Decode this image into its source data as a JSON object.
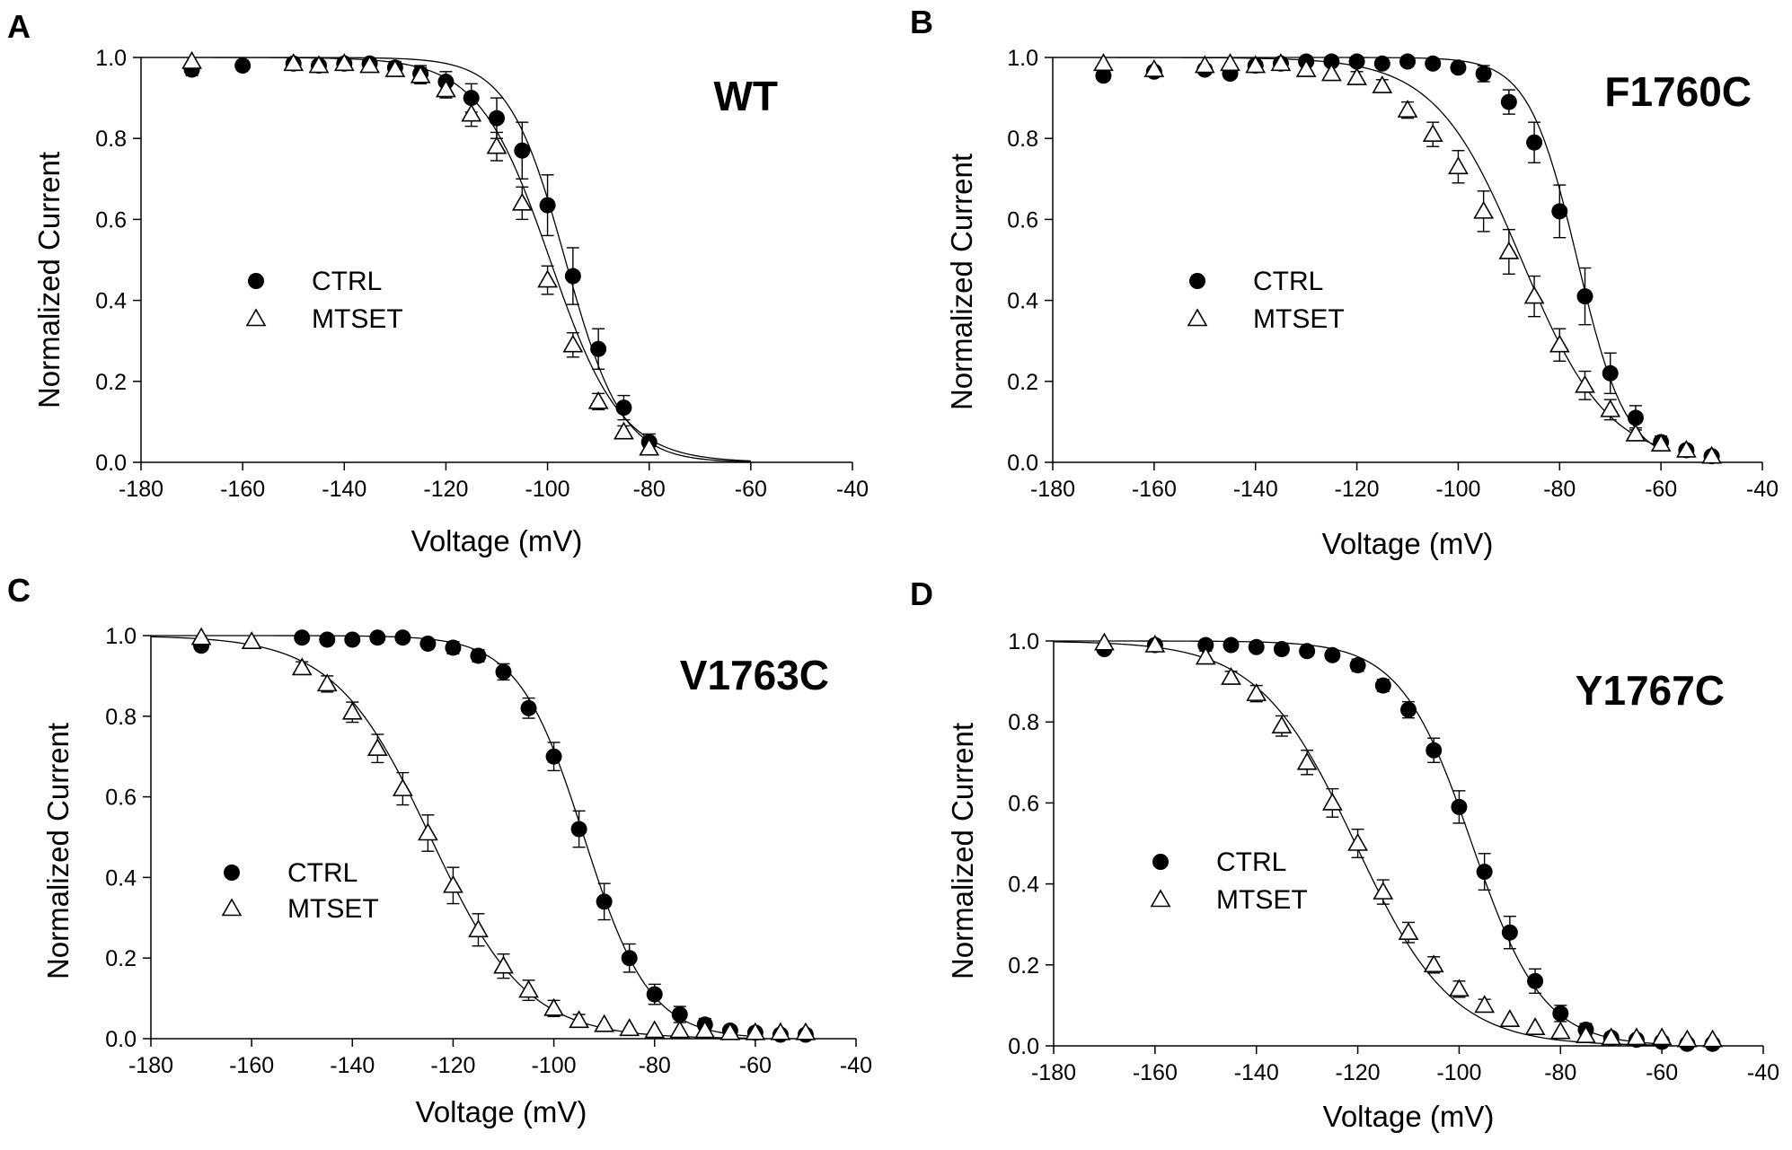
{
  "figure": {
    "description_free": true
  },
  "legend": {
    "ctrl_label": "CTRL",
    "mtset_label": "MTSET"
  },
  "chart_data": [
    {
      "panel": "A",
      "title": "WT",
      "type": "scatter",
      "xlabel": "Voltage (mV)",
      "ylabel": "Normalized Current",
      "xlim": [
        -180,
        -40
      ],
      "ylim": [
        0,
        1
      ],
      "xticks": [
        -180,
        -160,
        -140,
        -120,
        -100,
        -80,
        -60,
        -40
      ],
      "yticks": [
        "0.0",
        "0.2",
        "0.4",
        "0.6",
        "0.8",
        "1.0"
      ],
      "series": [
        {
          "name": "CTRL",
          "marker": "filled-circle",
          "x": [
            -170,
            -160,
            -150,
            -145,
            -140,
            -135,
            -130,
            -125,
            -120,
            -115,
            -110,
            -105,
            -100,
            -95,
            -90,
            -85,
            -80
          ],
          "y": [
            0.97,
            0.98,
            0.985,
            0.98,
            0.985,
            0.985,
            0.975,
            0.96,
            0.94,
            0.9,
            0.85,
            0.77,
            0.635,
            0.46,
            0.28,
            0.135,
            0.05
          ],
          "err": [
            0.015,
            0.01,
            0.01,
            0.01,
            0.01,
            0.01,
            0.015,
            0.02,
            0.025,
            0.035,
            0.05,
            0.07,
            0.075,
            0.07,
            0.05,
            0.03,
            0.02
          ],
          "fit": {
            "v_half": -96.5,
            "k": 5.6
          }
        },
        {
          "name": "MTSET",
          "marker": "open-triangle",
          "x": [
            -170,
            -150,
            -145,
            -140,
            -135,
            -130,
            -125,
            -120,
            -115,
            -110,
            -105,
            -100,
            -95,
            -90,
            -85,
            -80
          ],
          "y": [
            0.99,
            0.985,
            0.98,
            0.985,
            0.98,
            0.97,
            0.955,
            0.92,
            0.86,
            0.78,
            0.64,
            0.45,
            0.29,
            0.15,
            0.075,
            0.035
          ],
          "err": [
            0.01,
            0.01,
            0.01,
            0.01,
            0.01,
            0.015,
            0.02,
            0.02,
            0.03,
            0.035,
            0.04,
            0.035,
            0.03,
            0.02,
            0.015,
            0.01
          ],
          "fit": {
            "v_half": -99.5,
            "k": 7.0
          }
        }
      ]
    },
    {
      "panel": "B",
      "title": "F1760C",
      "type": "scatter",
      "xlabel": "Voltage (mV)",
      "ylabel": "Normalized Current",
      "xlim": [
        -180,
        -40
      ],
      "ylim": [
        0,
        1
      ],
      "xticks": [
        -180,
        -160,
        -140,
        -120,
        -100,
        -80,
        -60,
        -40
      ],
      "yticks": [
        "0.0",
        "0.2",
        "0.4",
        "0.6",
        "0.8",
        "1.0"
      ],
      "series": [
        {
          "name": "CTRL",
          "marker": "filled-circle",
          "x": [
            -170,
            -160,
            -150,
            -145,
            -140,
            -135,
            -130,
            -125,
            -120,
            -115,
            -110,
            -105,
            -100,
            -95,
            -90,
            -85,
            -80,
            -75,
            -70,
            -65,
            -60,
            -55,
            -50
          ],
          "y": [
            0.955,
            0.965,
            0.97,
            0.96,
            0.98,
            0.985,
            0.99,
            0.99,
            0.99,
            0.985,
            0.99,
            0.985,
            0.975,
            0.96,
            0.89,
            0.79,
            0.62,
            0.41,
            0.22,
            0.11,
            0.05,
            0.03,
            0.015
          ],
          "err": [
            0.01,
            0.01,
            0.01,
            0.01,
            0.01,
            0.01,
            0.01,
            0.01,
            0.01,
            0.01,
            0.01,
            0.01,
            0.01,
            0.02,
            0.03,
            0.05,
            0.065,
            0.07,
            0.05,
            0.03,
            0.015,
            0.01,
            0.01
          ],
          "fit": {
            "v_half": -76.5,
            "k": 4.8
          }
        },
        {
          "name": "MTSET",
          "marker": "open-triangle",
          "x": [
            -170,
            -160,
            -150,
            -145,
            -140,
            -135,
            -130,
            -125,
            -120,
            -115,
            -110,
            -105,
            -100,
            -95,
            -90,
            -85,
            -80,
            -75,
            -70,
            -65,
            -60,
            -55,
            -50
          ],
          "y": [
            0.985,
            0.97,
            0.98,
            0.985,
            0.98,
            0.985,
            0.97,
            0.96,
            0.95,
            0.93,
            0.87,
            0.81,
            0.73,
            0.62,
            0.52,
            0.41,
            0.29,
            0.19,
            0.13,
            0.07,
            0.045,
            0.03,
            0.015
          ],
          "err": [
            0.01,
            0.01,
            0.01,
            0.01,
            0.01,
            0.01,
            0.01,
            0.01,
            0.015,
            0.015,
            0.02,
            0.03,
            0.04,
            0.05,
            0.055,
            0.05,
            0.04,
            0.035,
            0.025,
            0.015,
            0.01,
            0.01,
            0.01
          ],
          "fit": {
            "v_half": -87.5,
            "k": 8.5
          }
        }
      ]
    },
    {
      "panel": "C",
      "title": "V1763C",
      "type": "scatter",
      "xlabel": "Voltage (mV)",
      "ylabel": "Normalized Current",
      "xlim": [
        -180,
        -40
      ],
      "ylim": [
        0,
        1
      ],
      "xticks": [
        -180,
        -160,
        -140,
        -120,
        -100,
        -80,
        -60,
        -40
      ],
      "yticks": [
        "0.0",
        "0.2",
        "0.4",
        "0.6",
        "0.8",
        "1.0"
      ],
      "series": [
        {
          "name": "CTRL",
          "marker": "filled-circle",
          "x": [
            -170,
            -150,
            -145,
            -140,
            -135,
            -130,
            -125,
            -120,
            -115,
            -110,
            -105,
            -100,
            -95,
            -90,
            -85,
            -80,
            -75,
            -70,
            -65,
            -60,
            -55,
            -50
          ],
          "y": [
            0.975,
            0.995,
            0.99,
            0.99,
            0.995,
            0.995,
            0.98,
            0.97,
            0.95,
            0.91,
            0.82,
            0.7,
            0.52,
            0.34,
            0.2,
            0.11,
            0.06,
            0.035,
            0.02,
            0.015,
            0.01,
            0.01
          ],
          "err": [
            0.01,
            0.01,
            0.01,
            0.01,
            0.01,
            0.01,
            0.01,
            0.015,
            0.015,
            0.02,
            0.025,
            0.035,
            0.045,
            0.045,
            0.035,
            0.025,
            0.02,
            0.015,
            0.01,
            0.01,
            0.01,
            0.01
          ],
          "fit": {
            "v_half": -94,
            "k": 6.5
          }
        },
        {
          "name": "MTSET",
          "marker": "open-triangle",
          "x": [
            -170,
            -160,
            -150,
            -145,
            -140,
            -135,
            -130,
            -125,
            -120,
            -115,
            -110,
            -105,
            -100,
            -95,
            -90,
            -85,
            -80,
            -75,
            -70,
            -65,
            -60,
            -55,
            -50
          ],
          "y": [
            0.995,
            0.985,
            0.92,
            0.88,
            0.81,
            0.72,
            0.62,
            0.51,
            0.38,
            0.27,
            0.18,
            0.12,
            0.075,
            0.045,
            0.035,
            0.025,
            0.02,
            0.02,
            0.02,
            0.015,
            0.015,
            0.015,
            0.015
          ],
          "err": [
            0.01,
            0.01,
            0.015,
            0.02,
            0.025,
            0.035,
            0.04,
            0.045,
            0.045,
            0.04,
            0.03,
            0.025,
            0.02,
            0.015,
            0.01,
            0.01,
            0.01,
            0.01,
            0.01,
            0.01,
            0.01,
            0.01,
            0.01
          ],
          "fit": {
            "v_half": -124.5,
            "k": 9.5
          }
        }
      ]
    },
    {
      "panel": "D",
      "title": "Y1767C",
      "type": "scatter",
      "xlabel": "Voltage (mV)",
      "ylabel": "Normalized Current",
      "xlim": [
        -180,
        -40
      ],
      "ylim": [
        0,
        1
      ],
      "xticks": [
        -180,
        -160,
        -140,
        -120,
        -100,
        -80,
        -60,
        -40
      ],
      "yticks": [
        "0.0",
        "0.2",
        "0.4",
        "0.6",
        "0.8",
        "1.0"
      ],
      "series": [
        {
          "name": "CTRL",
          "marker": "filled-circle",
          "x": [
            -170,
            -160,
            -150,
            -145,
            -140,
            -135,
            -130,
            -125,
            -120,
            -115,
            -110,
            -105,
            -100,
            -95,
            -90,
            -85,
            -80,
            -75,
            -70,
            -65,
            -60,
            -55,
            -50
          ],
          "y": [
            0.98,
            0.99,
            0.99,
            0.99,
            0.985,
            0.98,
            0.975,
            0.965,
            0.94,
            0.89,
            0.83,
            0.73,
            0.59,
            0.43,
            0.28,
            0.16,
            0.08,
            0.04,
            0.02,
            0.015,
            0.01,
            0.005,
            0.005
          ],
          "err": [
            0.01,
            0.01,
            0.01,
            0.01,
            0.01,
            0.01,
            0.01,
            0.01,
            0.015,
            0.015,
            0.02,
            0.03,
            0.04,
            0.045,
            0.04,
            0.03,
            0.02,
            0.015,
            0.01,
            0.01,
            0.01,
            0.01,
            0.01
          ],
          "fit": {
            "v_half": -97.5,
            "k": 7.0
          }
        },
        {
          "name": "MTSET",
          "marker": "open-triangle",
          "x": [
            -170,
            -160,
            -150,
            -145,
            -140,
            -135,
            -130,
            -125,
            -120,
            -115,
            -110,
            -105,
            -100,
            -95,
            -90,
            -85,
            -80,
            -75,
            -70,
            -65,
            -60,
            -55,
            -50
          ],
          "y": [
            0.995,
            0.99,
            0.96,
            0.91,
            0.87,
            0.79,
            0.7,
            0.6,
            0.5,
            0.38,
            0.28,
            0.2,
            0.14,
            0.1,
            0.065,
            0.045,
            0.035,
            0.025,
            0.02,
            0.02,
            0.02,
            0.015,
            0.015
          ],
          "err": [
            0.01,
            0.01,
            0.015,
            0.015,
            0.02,
            0.025,
            0.03,
            0.035,
            0.035,
            0.03,
            0.025,
            0.02,
            0.02,
            0.015,
            0.01,
            0.01,
            0.01,
            0.01,
            0.01,
            0.01,
            0.01,
            0.01,
            0.01
          ],
          "fit": {
            "v_half": -120.5,
            "k": 9.5
          }
        }
      ]
    }
  ]
}
